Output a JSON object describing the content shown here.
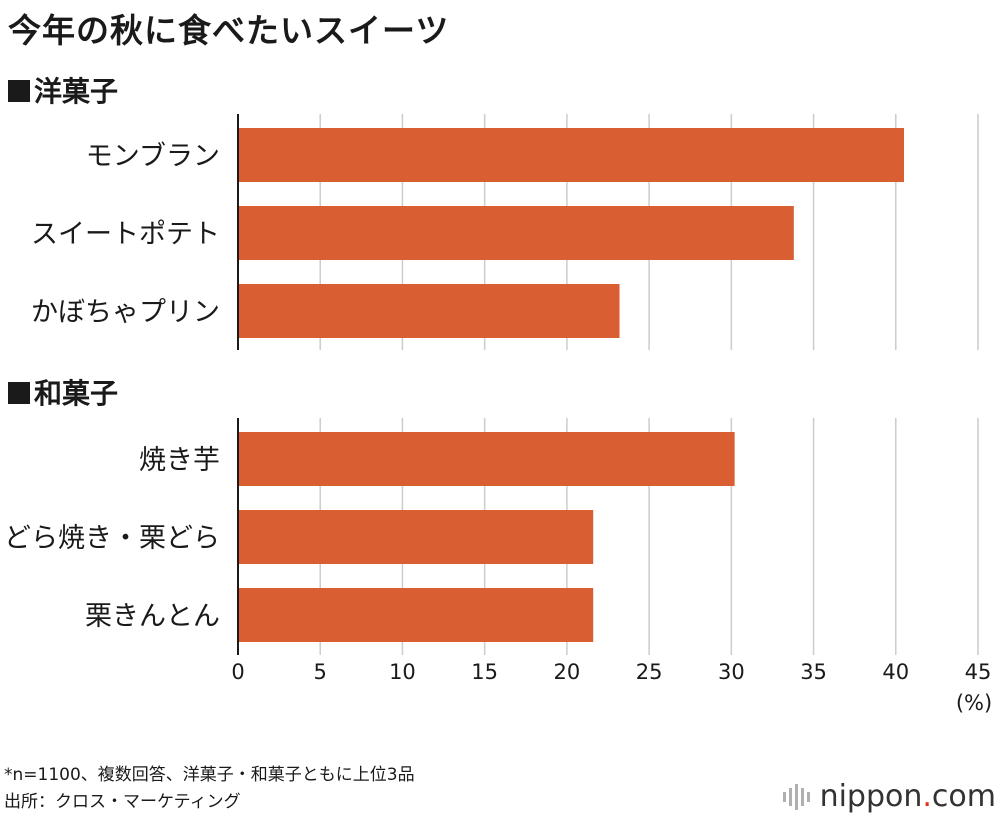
{
  "title": "今年の秋に食べたいスイーツ",
  "sections": [
    {
      "label": "洋菓子"
    },
    {
      "label": "和菓子"
    }
  ],
  "colors": {
    "bar": "#d95f33",
    "grid": "#cccccc",
    "axis": "#1a1a1a"
  },
  "chart_data": {
    "type": "bar",
    "orientation": "horizontal",
    "title": "今年の秋に食べたいスイーツ",
    "unit_label": "(%)",
    "xlim": [
      0,
      45
    ],
    "ticks": [
      0,
      5,
      10,
      15,
      20,
      25,
      30,
      35,
      40,
      45
    ],
    "groups": [
      {
        "name": "洋菓子",
        "categories": [
          "モンブラン",
          "スイートポテト",
          "かぼちゃプリン"
        ],
        "values": [
          40.5,
          33.8,
          23.2
        ]
      },
      {
        "name": "和菓子",
        "categories": [
          "焼き芋",
          "どら焼き・栗どら",
          "栗きんとん"
        ],
        "values": [
          30.2,
          21.6,
          21.6
        ]
      }
    ]
  },
  "footnote": {
    "line1": "*n=1100、複数回答、洋菓子・和菓子ともに上位3品",
    "line2": "出所：クロス・マーケティング"
  },
  "logo": {
    "name": "nippon",
    "dot": ".",
    "tld": "com"
  }
}
